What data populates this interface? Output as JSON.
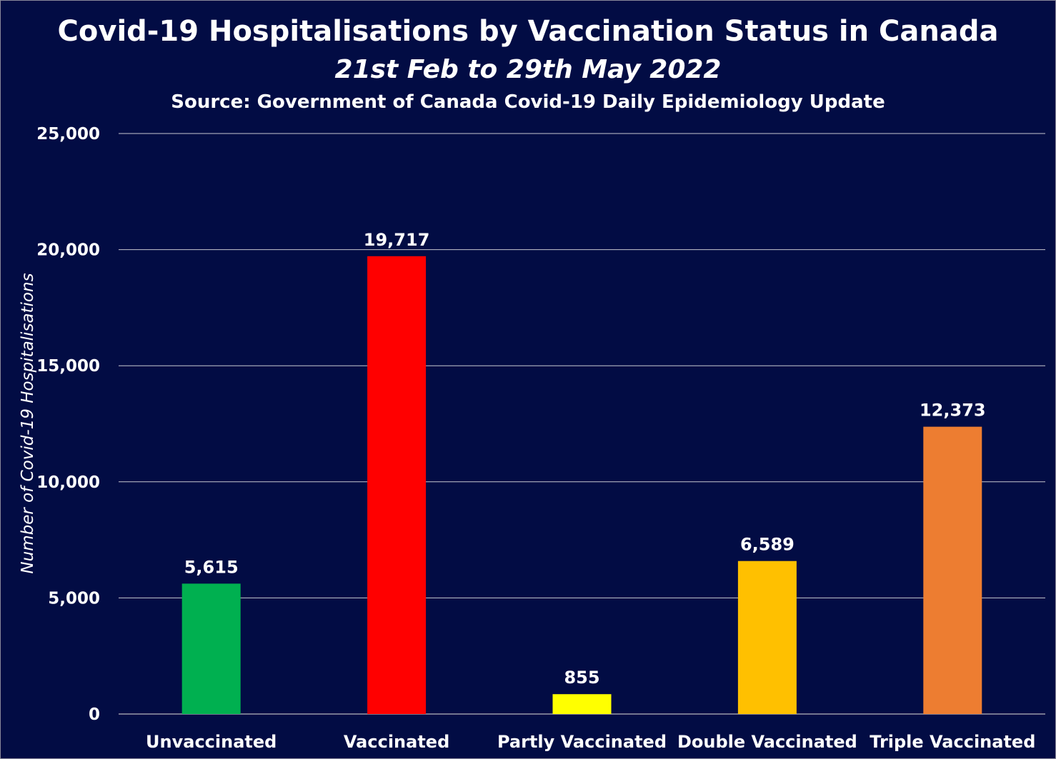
{
  "chart_data": {
    "type": "bar",
    "title": "Covid-19 Hospitalisations by Vaccination Status in Canada",
    "subtitle": "21st Feb to 29th May 2022",
    "source": "Source: Government of Canada Covid-19 Daily Epidemiology Update",
    "xlabel": "",
    "ylabel": "Number of Covid-19 Hospitalisations",
    "categories": [
      "Unvaccinated",
      "Vaccinated",
      "Partly Vaccinated",
      "Double Vaccinated",
      "Triple Vaccinated"
    ],
    "values": [
      5615,
      19717,
      855,
      6589,
      12373
    ],
    "value_labels": [
      "5,615",
      "19,717",
      "855",
      "6,589",
      "12,373"
    ],
    "colors": [
      "#00b050",
      "#ff0000",
      "#ffff00",
      "#ffc000",
      "#ed7d31"
    ],
    "ylim": [
      0,
      25000
    ],
    "yticks": [
      0,
      5000,
      10000,
      15000,
      20000,
      25000
    ],
    "ytick_labels": [
      "0",
      "5,000",
      "10,000",
      "15,000",
      "20,000",
      "25,000"
    ],
    "grid": true,
    "background": "#020c44",
    "text_color": "#ffffff"
  }
}
